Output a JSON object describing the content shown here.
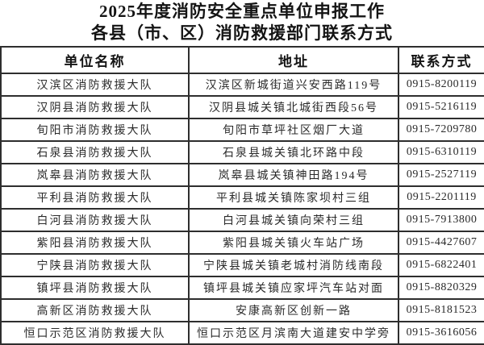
{
  "title": {
    "line1": "2025年度消防安全重点单位申报工作",
    "line2": "各县（市、区）消防救援部门联系方式"
  },
  "table": {
    "headers": [
      "单位名称",
      "地址",
      "联系方式"
    ],
    "rows": [
      {
        "unit": "汉滨区消防救援大队",
        "address": "汉滨区新城街道兴安西路119号",
        "phone": "0915-8200119"
      },
      {
        "unit": "汉阴县消防救援大队",
        "address": "汉阴县城关镇北城街西段56号",
        "phone": "0915-5216119"
      },
      {
        "unit": "旬阳市消防救援大队",
        "address": "旬阳市草坪社区烟厂大道",
        "phone": "0915-7209780"
      },
      {
        "unit": "石泉县消防救援大队",
        "address": "石泉县城关镇北环路中段",
        "phone": "0915-6310119"
      },
      {
        "unit": "岚皋县消防救援大队",
        "address": "岚皋县城关镇神田路194号",
        "phone": "0915-2527119"
      },
      {
        "unit": "平利县消防救援大队",
        "address": "平利县城关镇陈家坝村三组",
        "phone": "0915-2201119"
      },
      {
        "unit": "白河县消防救援大队",
        "address": "白河县城关镇向荣村三组",
        "phone": "0915-7913800"
      },
      {
        "unit": "紫阳县消防救援大队",
        "address": "紫阳县城关镇火车站广场",
        "phone": "0915-4427607"
      },
      {
        "unit": "宁陕县消防救援大队",
        "address": "宁陕县城关镇老城村消防线南段",
        "phone": "0915-6822401"
      },
      {
        "unit": "镇坪县消防救援大队",
        "address": "镇坪县城关镇应家坪汽车站对面",
        "phone": "0915-8820329"
      },
      {
        "unit": "高新区消防救援大队",
        "address": "安康高新区创新一路",
        "phone": "0915-8181523"
      },
      {
        "unit": "恒口示范区消防救援大队",
        "address": "恒口示范区月滨南大道建安中学旁",
        "phone": "0915-3616056"
      }
    ]
  },
  "colors": {
    "text": "#1f1f1f",
    "border": "#2e2e2e",
    "background": "#ffffff"
  }
}
